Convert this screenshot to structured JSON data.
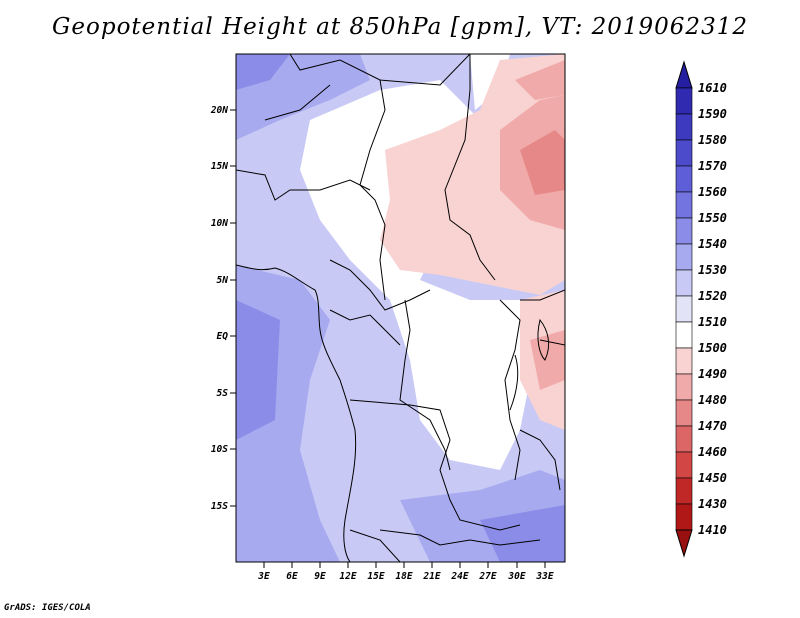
{
  "title": "Geopotential Height at 850hPa [gpm], VT: 2019062312",
  "credit": "GrADS: IGES/COLA",
  "map": {
    "lat_ticks": [
      "20N",
      "15N",
      "10N",
      "5N",
      "EQ",
      "5S",
      "10S",
      "15S"
    ],
    "lon_ticks": [
      "3E",
      "6E",
      "9E",
      "12E",
      "15E",
      "18E",
      "21E",
      "24E",
      "27E",
      "30E",
      "33E"
    ],
    "lon_range": [
      0,
      35
    ],
    "lat_range": [
      -20,
      25
    ]
  },
  "colorbar": {
    "levels": [
      "1610",
      "1590",
      "1580",
      "1570",
      "1560",
      "1550",
      "1540",
      "1530",
      "1520",
      "1510",
      "1500",
      "1490",
      "1480",
      "1470",
      "1460",
      "1450",
      "1430",
      "1410"
    ],
    "colors": [
      "#251ea0",
      "#2f2ab0",
      "#3d3ac0",
      "#4c4bcc",
      "#5e5fd8",
      "#7474e0",
      "#8a8ce8",
      "#a8aaf0",
      "#c8caf5",
      "#e3e3f8",
      "#ffffff",
      "#f9d2d2",
      "#f1aaaa",
      "#e68888",
      "#dc6666",
      "#d24646",
      "#c02828",
      "#b01818",
      "#981010"
    ]
  }
}
